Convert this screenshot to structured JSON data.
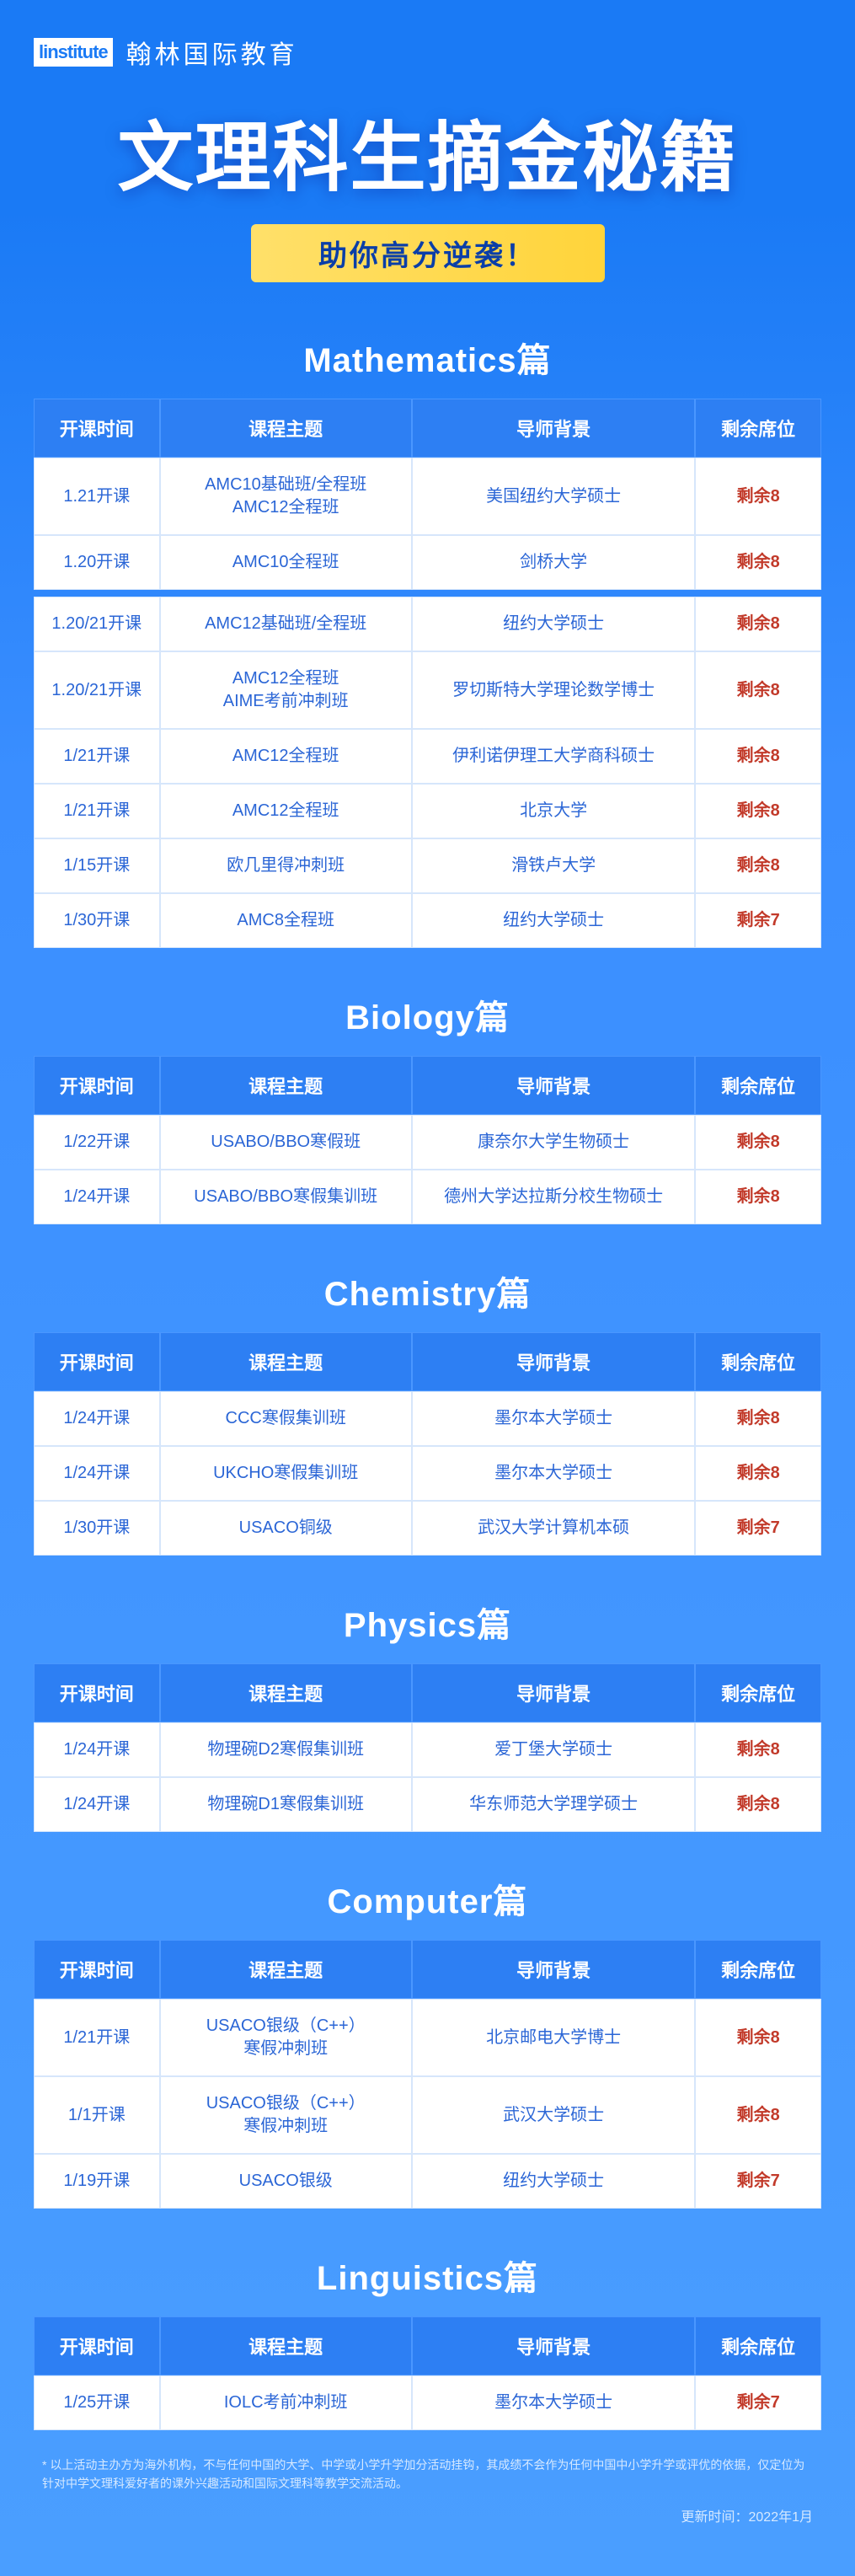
{
  "logo": {
    "mark": "linstitute",
    "text": "翰林国际教育"
  },
  "headline": "文理科生摘金秘籍",
  "subBanner": "助你高分逆袭！",
  "columns": {
    "time": "开课时间",
    "topic": "课程主题",
    "tutor": "导师背景",
    "seats": "剩余席位"
  },
  "sections": [
    {
      "title": "Mathematics篇",
      "split": true,
      "rows": [
        {
          "time": "1.21开课",
          "topic": "AMC10基础班/全程班\nAMC12全程班",
          "tutor": "美国纽约大学硕士",
          "seats": "剩余8"
        },
        {
          "time": "1.20开课",
          "topic": "AMC10全程班",
          "tutor": "剑桥大学",
          "seats": "剩余8"
        },
        {
          "gap": true
        },
        {
          "time": "1.20/21开课",
          "topic": "AMC12基础班/全程班",
          "tutor": "纽约大学硕士",
          "seats": "剩余8"
        },
        {
          "time": "1.20/21开课",
          "topic": "AMC12全程班\nAIME考前冲刺班",
          "tutor": "罗切斯特大学理论数学博士",
          "seats": "剩余8"
        },
        {
          "time": "1/21开课",
          "topic": "AMC12全程班",
          "tutor": "伊利诺伊理工大学商科硕士",
          "seats": "剩余8"
        },
        {
          "time": "1/21开课",
          "topic": "AMC12全程班",
          "tutor": "北京大学",
          "seats": "剩余8"
        },
        {
          "time": "1/15开课",
          "topic": "欧几里得冲刺班",
          "tutor": "滑铁卢大学",
          "seats": "剩余8"
        },
        {
          "time": "1/30开课",
          "topic": "AMC8全程班",
          "tutor": "纽约大学硕士",
          "seats": "剩余7"
        }
      ]
    },
    {
      "title": "Biology篇",
      "rows": [
        {
          "time": "1/22开课",
          "topic": "USABO/BBO寒假班",
          "tutor": "康奈尔大学生物硕士",
          "seats": "剩余8"
        },
        {
          "time": "1/24开课",
          "topic": "USABO/BBO寒假集训班",
          "tutor": "德州大学达拉斯分校生物硕士",
          "seats": "剩余8"
        }
      ]
    },
    {
      "title": "Chemistry篇",
      "rows": [
        {
          "time": "1/24开课",
          "topic": "CCC寒假集训班",
          "tutor": "墨尔本大学硕士",
          "seats": "剩余8"
        },
        {
          "time": "1/24开课",
          "topic": "UKCHO寒假集训班",
          "tutor": "墨尔本大学硕士",
          "seats": "剩余8"
        },
        {
          "time": "1/30开课",
          "topic": "USACO铜级",
          "tutor": "武汉大学计算机本硕",
          "seats": "剩余7"
        }
      ]
    },
    {
      "title": "Physics篇",
      "rows": [
        {
          "time": "1/24开课",
          "topic": "物理碗D2寒假集训班",
          "tutor": "爱丁堡大学硕士",
          "seats": "剩余8"
        },
        {
          "time": "1/24开课",
          "topic": "物理碗D1寒假集训班",
          "tutor": "华东师范大学理学硕士",
          "seats": "剩余8"
        }
      ]
    },
    {
      "title": "Computer篇",
      "rows": [
        {
          "time": "1/21开课",
          "topic": "USACO银级（C++）\n寒假冲刺班",
          "tutor": "北京邮电大学博士",
          "seats": "剩余8"
        },
        {
          "time": "1/1开课",
          "topic": "USACO银级（C++）\n寒假冲刺班",
          "tutor": "武汉大学硕士",
          "seats": "剩余8"
        },
        {
          "time": "1/19开课",
          "topic": "USACO银级",
          "tutor": "纽约大学硕士",
          "seats": "剩余7"
        }
      ]
    },
    {
      "title": "Linguistics篇",
      "rows": [
        {
          "time": "1/25开课",
          "topic": "IOLC考前冲刺班",
          "tutor": "墨尔本大学硕士",
          "seats": "剩余7"
        }
      ]
    }
  ],
  "footerNote": "* 以上活动主办方为海外机构，不与任何中国的大学、中学或小学升学加分活动挂钩，其成绩不会作为任何中国中小学升学或评优的依据，仅定位为针对中学文理科爱好者的课外兴趣活动和国际文理科等教学交流活动。",
  "updateTime": "更新时间：2022年1月"
}
